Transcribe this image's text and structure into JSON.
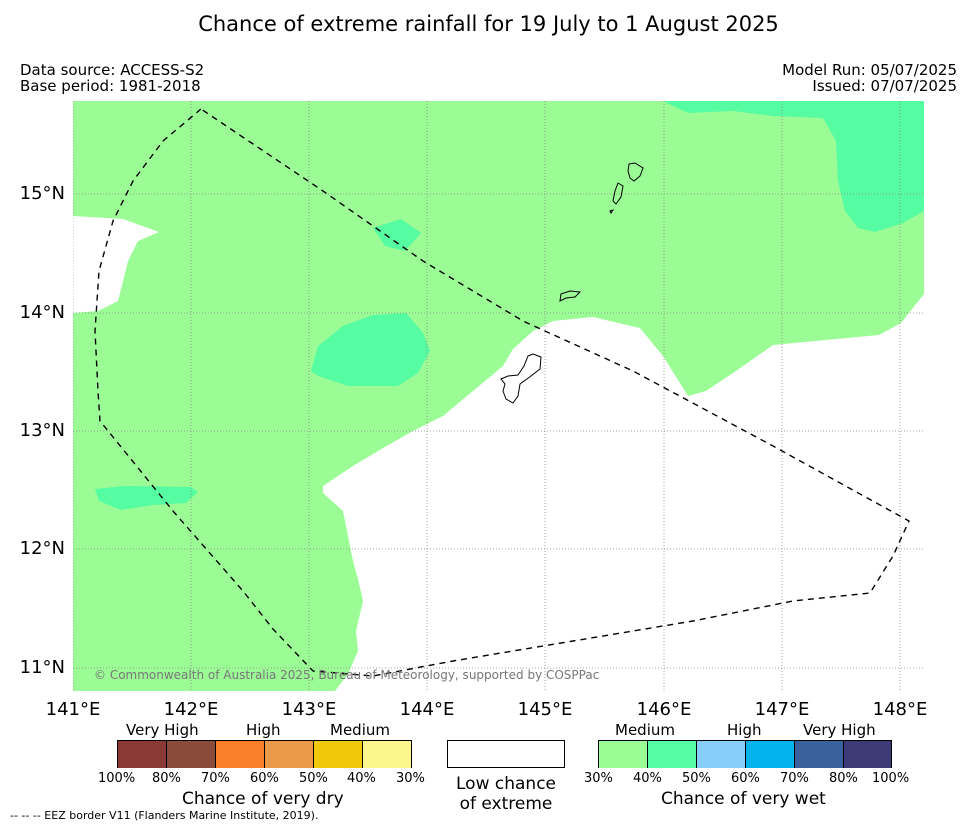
{
  "title": "Chance of extreme rainfall for 19 July to 1 August 2025",
  "meta": {
    "data_source": "Data source: ACCESS-S2",
    "base_period": "Base period: 1981-2018",
    "model_run": "Model Run: 05/07/2025",
    "issued": "Issued: 07/07/2025"
  },
  "map": {
    "lat_labels": [
      "15°N",
      "14°N",
      "13°N",
      "12°N",
      "11°N"
    ],
    "lon_labels": [
      "141°E",
      "142°E",
      "143°E",
      "144°E",
      "145°E",
      "146°E",
      "147°E",
      "148°E"
    ],
    "copyright": "© Commonwealth of Australia 2025, Bureau of Meteorology, supported by COSPPac",
    "colors": {
      "medium_wet": "#9bfc96",
      "high_wet": "#55fca2",
      "low": "#ffffff"
    }
  },
  "legend": {
    "dry": {
      "categories": [
        "Very High",
        "High",
        "Medium"
      ],
      "ticks": [
        "100%",
        "80%",
        "70%",
        "60%",
        "50%",
        "40%",
        "30%"
      ],
      "colors": [
        "#8b3a33",
        "#8b4b3b",
        "#fc7f2a",
        "#eb9a4a",
        "#f0c90a",
        "#fdf58e"
      ],
      "title": "Chance of very dry"
    },
    "low": {
      "line1": "Low chance",
      "line2": "of extreme"
    },
    "wet": {
      "categories": [
        "Medium",
        "High",
        "Very High"
      ],
      "ticks": [
        "30%",
        "40%",
        "50%",
        "60%",
        "70%",
        "80%",
        "100%"
      ],
      "colors": [
        "#9bfc96",
        "#55fca2",
        "#87cdfa",
        "#04b2ec",
        "#3a619c",
        "#3d3a78"
      ],
      "title": "Chance of very wet"
    }
  },
  "eez_note": "--  --  -- EEZ border V11 (Flanders Marine Institute, 2019)."
}
